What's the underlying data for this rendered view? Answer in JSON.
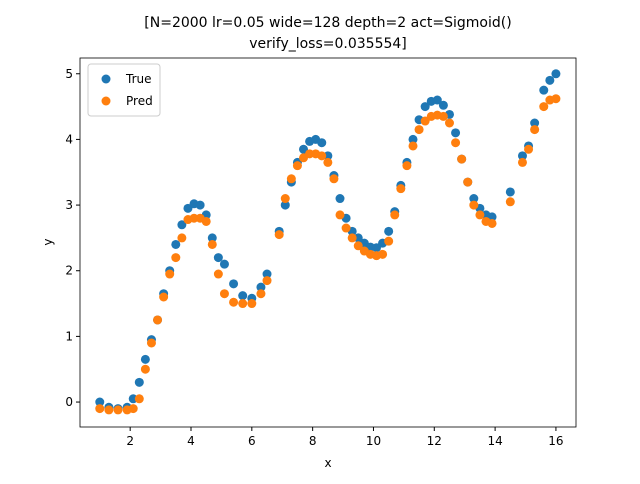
{
  "chart_data": {
    "type": "scatter",
    "title": [
      "[N=2000 lr=0.05 wide=128 depth=2 act=Sigmoid()",
      "verify_loss=0.035554]"
    ],
    "xlabel": "x",
    "ylabel": "y",
    "x": [
      1.0,
      1.3,
      1.6,
      1.9,
      2.1,
      2.3,
      2.5,
      2.7,
      2.9,
      3.1,
      3.3,
      3.5,
      3.7,
      3.9,
      4.1,
      4.3,
      4.5,
      4.7,
      4.9,
      5.1,
      5.4,
      5.7,
      6.0,
      6.3,
      6.5,
      6.9,
      7.1,
      7.3,
      7.5,
      7.7,
      7.9,
      8.1,
      8.3,
      8.5,
      8.7,
      8.9,
      9.1,
      9.3,
      9.5,
      9.7,
      9.9,
      10.1,
      10.3,
      10.5,
      10.7,
      10.9,
      11.1,
      11.3,
      11.5,
      11.7,
      11.9,
      12.1,
      12.3,
      12.5,
      12.7,
      12.9,
      13.1,
      13.3,
      13.5,
      13.7,
      13.9,
      14.5,
      14.9,
      15.1,
      15.3,
      15.6,
      15.8,
      16.0
    ],
    "series": [
      {
        "name": "True",
        "color": "#1f77b4",
        "values": [
          0.0,
          -0.08,
          -0.1,
          -0.08,
          0.05,
          0.3,
          0.65,
          0.95,
          1.25,
          1.65,
          2.0,
          2.4,
          2.7,
          2.95,
          3.02,
          3.0,
          2.85,
          2.5,
          2.2,
          2.1,
          1.8,
          1.62,
          1.58,
          1.75,
          1.95,
          2.6,
          3.0,
          3.35,
          3.65,
          3.85,
          3.97,
          4.0,
          3.95,
          3.75,
          3.45,
          3.1,
          2.8,
          2.6,
          2.5,
          2.42,
          2.36,
          2.35,
          2.42,
          2.6,
          2.9,
          3.3,
          3.65,
          4.0,
          4.3,
          4.5,
          4.58,
          4.6,
          4.52,
          4.38,
          4.1,
          3.7,
          3.35,
          3.1,
          2.95,
          2.85,
          2.82,
          3.2,
          3.75,
          3.9,
          4.25,
          4.75,
          4.9,
          5.0
        ]
      },
      {
        "name": "Pred",
        "color": "#ff7f0e",
        "values": [
          -0.1,
          -0.12,
          -0.12,
          -0.12,
          -0.1,
          0.05,
          0.5,
          0.9,
          1.25,
          1.6,
          1.95,
          2.2,
          2.5,
          2.78,
          2.8,
          2.8,
          2.75,
          2.4,
          1.95,
          1.65,
          1.52,
          1.5,
          1.5,
          1.65,
          1.85,
          2.55,
          3.1,
          3.4,
          3.6,
          3.72,
          3.78,
          3.78,
          3.75,
          3.65,
          3.4,
          2.85,
          2.65,
          2.5,
          2.38,
          2.3,
          2.25,
          2.23,
          2.25,
          2.45,
          2.85,
          3.25,
          3.6,
          3.9,
          4.15,
          4.28,
          4.35,
          4.37,
          4.35,
          4.25,
          3.95,
          3.7,
          3.35,
          3.0,
          2.85,
          2.75,
          2.72,
          3.05,
          3.65,
          3.85,
          4.15,
          4.5,
          4.6,
          4.62
        ]
      }
    ],
    "xlim": [
      0.35,
      16.66
    ],
    "ylim": [
      -0.38,
      5.24
    ],
    "xticks": [
      2,
      4,
      6,
      8,
      10,
      12,
      14,
      16
    ],
    "yticks": [
      0,
      1,
      2,
      3,
      4,
      5
    ],
    "legend": "upper left"
  }
}
